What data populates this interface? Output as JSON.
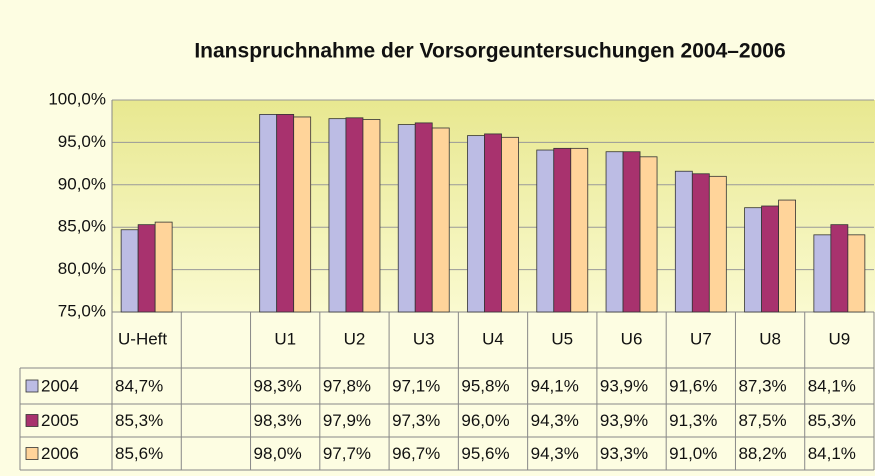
{
  "chart_data": {
    "type": "bar",
    "title": "Inanspruchnahme der Vorsorgeuntersuchungen 2004–2006",
    "categories": [
      "U-Heft",
      null,
      "U1",
      "U2",
      "U3",
      "U4",
      "U5",
      "U6",
      "U7",
      "U8",
      "U9"
    ],
    "series": [
      {
        "name": "2004",
        "color": "#bcbce4",
        "values": [
          84.7,
          null,
          98.3,
          97.8,
          97.1,
          95.8,
          94.1,
          93.9,
          91.6,
          87.3,
          84.1
        ],
        "value_labels": [
          "84,7%",
          null,
          "98,3%",
          "97,8%",
          "97,1%",
          "95,8%",
          "94,1%",
          "93,9%",
          "91,6%",
          "87,3%",
          "84,1%"
        ]
      },
      {
        "name": "2005",
        "color": "#a8326e",
        "values": [
          85.3,
          null,
          98.3,
          97.9,
          97.3,
          96.0,
          94.3,
          93.9,
          91.3,
          87.5,
          85.3
        ],
        "value_labels": [
          "85,3%",
          null,
          "98,3%",
          "97,9%",
          "97,3%",
          "96,0%",
          "94,3%",
          "93,9%",
          "91,3%",
          "87,5%",
          "85,3%"
        ]
      },
      {
        "name": "2006",
        "color": "#ffd49a",
        "values": [
          85.6,
          null,
          98.0,
          97.7,
          96.7,
          95.6,
          94.3,
          93.3,
          91.0,
          88.2,
          84.1
        ],
        "value_labels": [
          "85,6%",
          null,
          "98,0%",
          "97,7%",
          "96,7%",
          "95,6%",
          "94,3%",
          "93,3%",
          "91,0%",
          "88,2%",
          "84,1%"
        ]
      }
    ],
    "ylim": [
      75,
      100
    ],
    "yticks": [
      {
        "value": 75,
        "label": "75,0%"
      },
      {
        "value": 80,
        "label": "80,0%"
      },
      {
        "value": 85,
        "label": "85,0%"
      },
      {
        "value": 90,
        "label": "90,0%"
      },
      {
        "value": 95,
        "label": "95,0%"
      },
      {
        "value": 100,
        "label": "100,0%"
      }
    ],
    "grid": true
  }
}
